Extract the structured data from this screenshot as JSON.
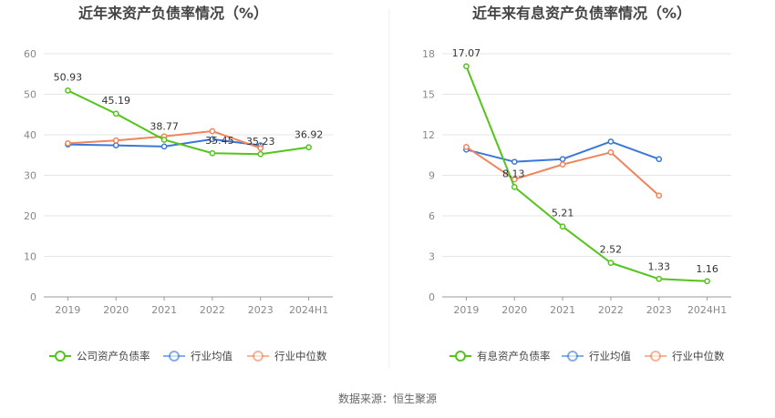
{
  "source": "数据来源：恒生聚源",
  "colors": {
    "company": "#52c41a",
    "industry_avg": "#3a78d8",
    "industry_median": "#f0845c",
    "grid": "#e6e6e6",
    "axis": "#999999"
  },
  "chart_data": [
    {
      "type": "line",
      "title": "近年来资产负债率情况（%）",
      "categories": [
        "2019",
        "2020",
        "2021",
        "2022",
        "2023",
        "2024H1"
      ],
      "ylim": [
        0,
        60
      ],
      "yticks": [
        0,
        10,
        20,
        30,
        40,
        50,
        60
      ],
      "series": [
        {
          "name": "公司资产负债率",
          "color_key": "company",
          "values": [
            50.93,
            45.19,
            38.77,
            35.45,
            35.23,
            36.92
          ],
          "labels": [
            "50.93",
            "45.19",
            "38.77",
            "35.45",
            "35.23",
            "36.92"
          ]
        },
        {
          "name": "行业均值",
          "color_key": "industry_avg",
          "values": [
            37.6,
            37.4,
            37.1,
            38.9,
            37.4,
            null
          ]
        },
        {
          "name": "行业中位数",
          "color_key": "industry_median",
          "values": [
            37.9,
            38.6,
            39.6,
            40.9,
            36.7,
            null
          ]
        }
      ]
    },
    {
      "type": "line",
      "title": "近年来有息资产负债率情况（%）",
      "categories": [
        "2019",
        "2020",
        "2021",
        "2022",
        "2023",
        "2024H1"
      ],
      "ylim": [
        0,
        18
      ],
      "yticks": [
        0,
        3,
        6,
        9,
        12,
        15,
        18
      ],
      "series": [
        {
          "name": "有息资产负债率",
          "color_key": "company",
          "values": [
            17.07,
            8.13,
            5.21,
            2.52,
            1.33,
            1.16
          ],
          "labels": [
            "17.07",
            "8.13",
            "5.21",
            "2.52",
            "1.33",
            "1.16"
          ]
        },
        {
          "name": "行业均值",
          "color_key": "industry_avg",
          "values": [
            10.9,
            10.0,
            10.2,
            11.5,
            10.2,
            null
          ]
        },
        {
          "name": "行业中位数",
          "color_key": "industry_median",
          "values": [
            11.1,
            8.7,
            9.8,
            10.7,
            7.5,
            null
          ]
        }
      ]
    }
  ]
}
